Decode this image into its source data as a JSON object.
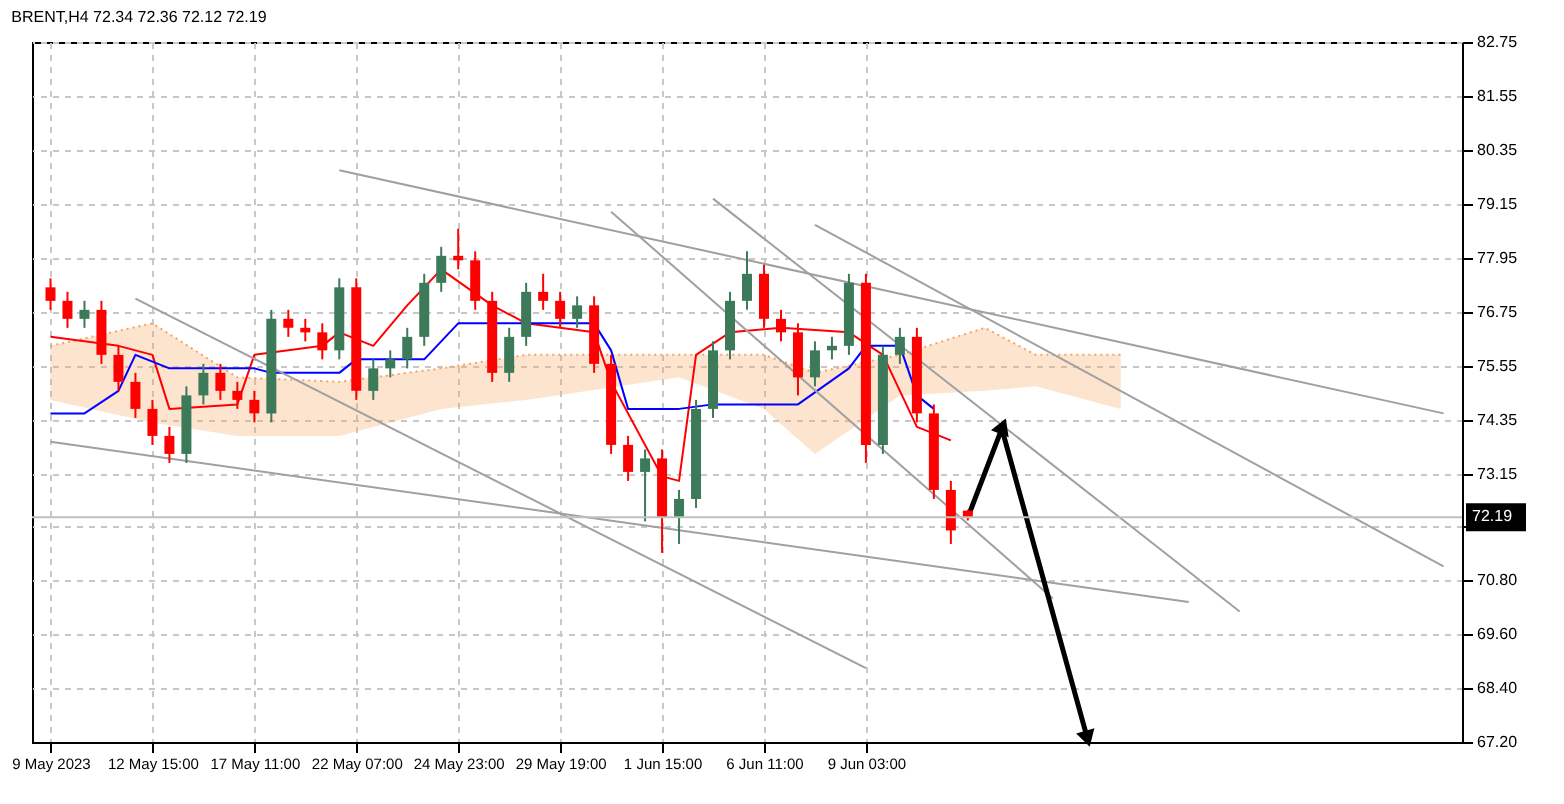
{
  "chart_data": {
    "type": "candlestick",
    "title": "BRENT,H4  72.34 72.36 72.12 72.19",
    "categories": [
      "9 May 2023",
      null,
      null,
      null,
      null,
      null,
      "12 May 15:00",
      null,
      null,
      null,
      null,
      null,
      "17 May 11:00",
      null,
      null,
      null,
      null,
      null,
      "22 May 07:00",
      null,
      null,
      null,
      null,
      null,
      "24 May 23:00",
      null,
      null,
      null,
      null,
      null,
      "29 May 19:00",
      null,
      null,
      null,
      null,
      null,
      "1 Jun 15:00",
      null,
      null,
      null,
      null,
      null,
      "6 Jun 11:00",
      null,
      null,
      null,
      null,
      null,
      "9 Jun 03:00",
      null,
      null,
      null,
      null,
      null,
      null,
      null,
      null,
      null,
      null,
      null,
      null,
      null,
      null,
      null,
      null,
      null,
      null,
      null,
      null,
      null,
      null,
      null,
      null,
      null,
      null,
      null,
      null,
      null,
      null,
      null,
      null,
      null,
      null
    ],
    "ylim": [
      67.2,
      82.75
    ],
    "yticks": [
      {
        "value": 67.2,
        "label": "67.20"
      },
      {
        "value": 68.4,
        "label": "68.40"
      },
      {
        "value": 69.6,
        "label": "69.60"
      },
      {
        "value": 70.8,
        "label": "70.80"
      },
      {
        "value": 72.0,
        "label": null
      },
      {
        "value": 73.15,
        "label": "73.15"
      },
      {
        "value": 74.35,
        "label": "74.35"
      },
      {
        "value": 75.55,
        "label": "75.55"
      },
      {
        "value": 76.75,
        "label": "76.75"
      },
      {
        "value": 77.95,
        "label": "77.95"
      },
      {
        "value": 79.15,
        "label": "79.15"
      },
      {
        "value": 80.35,
        "label": "80.35"
      },
      {
        "value": 81.55,
        "label": "81.55"
      },
      {
        "value": 82.75,
        "label": "82.75"
      }
    ],
    "grid": true,
    "ref_lines": [
      {
        "axis": "y",
        "value": 72.19,
        "label": "72.19",
        "color": "#c0c0c0"
      }
    ],
    "series": [
      {
        "type": "line",
        "color": "#f4a460",
        "line_style": "dotted",
        "values": [
          76.0,
          null,
          null,
          null,
          null,
          null,
          76.5,
          null,
          null,
          null,
          null,
          75.3,
          null,
          null,
          null,
          null,
          null,
          75.2,
          null,
          null,
          null,
          null,
          null,
          75.5,
          null,
          null,
          null,
          null,
          75.8,
          null,
          null,
          null,
          null,
          null,
          null,
          null,
          null,
          75.8,
          null,
          null,
          null,
          null,
          75.8,
          null,
          null,
          75.4,
          null,
          null,
          null,
          null,
          75.8,
          null,
          null,
          null,
          null,
          76.4,
          null,
          null,
          75.8,
          null,
          null,
          null,
          null,
          75.8,
          null,
          null,
          null,
          null,
          null,
          null,
          null,
          null,
          null,
          null,
          null,
          null,
          null,
          null,
          null,
          null,
          null,
          null,
          null
        ],
        "upper": [
          76.0,
          null,
          null,
          null,
          null,
          null,
          76.5,
          null,
          null,
          null,
          null,
          75.3,
          null,
          null,
          null,
          null,
          null,
          75.2,
          null,
          null,
          null,
          null,
          null,
          75.5,
          null,
          null,
          null,
          null,
          75.8,
          null,
          null,
          null,
          null,
          null,
          null,
          null,
          null,
          75.8,
          null,
          null,
          null,
          null,
          75.8,
          null,
          null,
          75.4,
          null,
          null,
          null,
          null,
          75.8,
          null,
          null,
          null,
          null,
          76.4,
          null,
          null,
          75.8,
          null,
          null,
          null,
          null,
          75.8,
          null,
          null,
          null,
          null,
          null,
          null,
          null,
          null,
          null,
          null,
          null,
          null,
          null,
          null,
          null,
          null,
          null,
          null,
          null
        ],
        "lower": [
          74.8,
          null,
          null,
          null,
          null,
          null,
          74.3,
          null,
          null,
          null,
          null,
          74.0,
          null,
          null,
          null,
          null,
          null,
          74.0,
          null,
          null,
          null,
          null,
          null,
          74.6,
          null,
          null,
          null,
          null,
          74.8,
          null,
          null,
          null,
          null,
          null,
          null,
          null,
          null,
          75.3,
          null,
          null,
          null,
          null,
          74.6,
          null,
          null,
          73.6,
          null,
          null,
          null,
          null,
          74.9,
          null,
          null,
          null,
          null,
          75.0,
          null,
          null,
          75.1,
          null,
          null,
          null,
          null,
          74.6,
          null,
          null,
          null,
          null,
          null,
          null,
          null,
          null,
          null,
          null,
          null,
          null,
          null,
          null,
          null,
          null,
          null,
          null,
          null
        ]
      },
      {
        "type": "line",
        "color": "#ff0000",
        "values": [
          76.2,
          null,
          null,
          null,
          76.0,
          null,
          75.8,
          74.6,
          null,
          null,
          null,
          74.7,
          75.8,
          null,
          null,
          null,
          76.0,
          76.3,
          null,
          76.0,
          null,
          76.9,
          null,
          77.7,
          null,
          null,
          76.9,
          null,
          76.5,
          null,
          null,
          null,
          76.3,
          75.2,
          null,
          null,
          73.1,
          73.0,
          75.8,
          null,
          76.3,
          null,
          null,
          76.4,
          null,
          null,
          null,
          76.3,
          null,
          75.8,
          null,
          74.2,
          null,
          73.9,
          null,
          null,
          null,
          null,
          null,
          null,
          null,
          null,
          null,
          null,
          null,
          null,
          null,
          null,
          null,
          null,
          null,
          null,
          null,
          null,
          null,
          null,
          null,
          null,
          null,
          null,
          null,
          null,
          null
        ]
      },
      {
        "type": "line",
        "color": "#0000ff",
        "values": [
          74.5,
          null,
          74.5,
          null,
          75.0,
          75.8,
          null,
          75.5,
          null,
          null,
          null,
          null,
          75.5,
          75.4,
          null,
          null,
          null,
          75.4,
          75.7,
          null,
          null,
          null,
          75.7,
          null,
          76.5,
          null,
          null,
          null,
          76.5,
          null,
          null,
          null,
          76.5,
          75.9,
          74.6,
          null,
          null,
          74.6,
          null,
          74.7,
          null,
          null,
          null,
          null,
          74.7,
          null,
          null,
          75.5,
          76.0,
          null,
          76.0,
          74.9,
          74.6,
          null,
          null,
          null,
          null,
          null,
          null,
          null,
          null,
          null,
          null,
          null,
          null,
          null,
          null,
          null,
          null,
          null,
          null,
          null,
          null,
          null,
          null,
          null,
          null,
          null,
          null,
          null,
          null,
          null,
          null
        ]
      },
      {
        "type": "line",
        "color": "#a0a0a0",
        "values": [
          null,
          null,
          null,
          null,
          null,
          null,
          null,
          null,
          null,
          null,
          null,
          null,
          null,
          null,
          null,
          null,
          null,
          79.9,
          null,
          null,
          null,
          null,
          null,
          null,
          null,
          null,
          null,
          null,
          null,
          null,
          null,
          null,
          null,
          null,
          null,
          null,
          null,
          null,
          null,
          null,
          null,
          null,
          null,
          null,
          null,
          null,
          null,
          null,
          null,
          null,
          null,
          null,
          null,
          null,
          null,
          null,
          null,
          null,
          null,
          null,
          null,
          null,
          null,
          null,
          null,
          null,
          null,
          null,
          null,
          null,
          null,
          null,
          null,
          null,
          null,
          null,
          null,
          null,
          null,
          null,
          null,
          null,
          74.5
        ]
      },
      {
        "type": "line",
        "color": "#a0a0a0",
        "values": [
          73.87,
          null,
          null,
          null,
          null,
          null,
          null,
          null,
          null,
          null,
          null,
          null,
          null,
          null,
          null,
          null,
          null,
          null,
          null,
          null,
          null,
          null,
          null,
          null,
          null,
          null,
          null,
          null,
          null,
          null,
          null,
          null,
          null,
          null,
          null,
          null,
          null,
          null,
          null,
          null,
          null,
          null,
          null,
          null,
          null,
          null,
          null,
          null,
          null,
          null,
          null,
          null,
          null,
          null,
          null,
          null,
          null,
          null,
          null,
          null,
          null,
          null,
          null,
          null,
          null,
          null,
          null,
          70.31,
          null,
          null,
          null,
          null,
          null,
          null,
          null,
          null,
          null,
          null,
          null,
          null,
          null,
          null,
          null
        ]
      },
      {
        "type": "line",
        "color": "#a0a0a0",
        "values": [
          null,
          null,
          null,
          null,
          null,
          77.05,
          null,
          null,
          null,
          null,
          null,
          null,
          null,
          null,
          null,
          null,
          null,
          null,
          null,
          null,
          null,
          null,
          null,
          null,
          null,
          null,
          null,
          null,
          null,
          null,
          null,
          null,
          null,
          null,
          null,
          null,
          null,
          null,
          null,
          null,
          null,
          null,
          null,
          null,
          null,
          null,
          null,
          null,
          68.84,
          null,
          null,
          null,
          null,
          null,
          null,
          null,
          null,
          null,
          null,
          null,
          null,
          null,
          null,
          null,
          null,
          null,
          null,
          null,
          null,
          null,
          null,
          null,
          null,
          null,
          null,
          null,
          null,
          null,
          null,
          null,
          null,
          null,
          null
        ]
      },
      {
        "type": "line",
        "color": "#a0a0a0",
        "values": [
          null,
          null,
          null,
          null,
          null,
          null,
          null,
          null,
          null,
          null,
          null,
          null,
          null,
          null,
          null,
          null,
          null,
          null,
          null,
          null,
          null,
          null,
          null,
          null,
          null,
          null,
          null,
          null,
          null,
          null,
          null,
          null,
          null,
          78.98,
          null,
          null,
          null,
          null,
          null,
          null,
          null,
          null,
          null,
          null,
          null,
          null,
          null,
          null,
          null,
          null,
          null,
          null,
          null,
          null,
          null,
          null,
          null,
          null,
          null,
          70.39,
          null,
          null,
          null,
          null,
          null,
          null,
          null,
          null,
          null,
          null,
          null,
          null,
          null,
          null,
          null,
          null,
          null,
          null,
          null,
          null,
          null,
          null,
          null
        ]
      },
      {
        "type": "line",
        "color": "#a0a0a0",
        "values": [
          null,
          null,
          null,
          null,
          null,
          null,
          null,
          null,
          null,
          null,
          null,
          null,
          null,
          null,
          null,
          null,
          null,
          null,
          null,
          null,
          null,
          null,
          null,
          null,
          null,
          null,
          null,
          null,
          null,
          null,
          null,
          null,
          null,
          null,
          null,
          null,
          null,
          null,
          null,
          79.27,
          null,
          null,
          null,
          null,
          null,
          null,
          null,
          null,
          null,
          null,
          null,
          null,
          null,
          null,
          null,
          null,
          null,
          null,
          null,
          null,
          null,
          null,
          null,
          null,
          null,
          null,
          null,
          null,
          null,
          null,
          70.1,
          null,
          null,
          null,
          null,
          null,
          null,
          null,
          null,
          null,
          null,
          null,
          null
        ]
      },
      {
        "type": "line",
        "color": "#a0a0a0",
        "values": [
          null,
          null,
          null,
          null,
          null,
          null,
          null,
          null,
          null,
          null,
          null,
          null,
          null,
          null,
          null,
          null,
          null,
          null,
          null,
          null,
          null,
          null,
          null,
          null,
          null,
          null,
          null,
          null,
          null,
          null,
          null,
          null,
          null,
          null,
          null,
          null,
          null,
          null,
          null,
          null,
          null,
          null,
          null,
          null,
          null,
          78.69,
          null,
          null,
          null,
          null,
          null,
          null,
          null,
          null,
          null,
          null,
          null,
          null,
          null,
          null,
          null,
          null,
          null,
          null,
          null,
          null,
          null,
          null,
          null,
          null,
          null,
          null,
          null,
          null,
          null,
          null,
          null,
          null,
          null,
          null,
          null,
          null,
          71.1
        ]
      },
      {
        "type": "line",
        "color": "#000000",
        "marker": "triangle",
        "values": [
          null,
          null,
          null,
          null,
          null,
          null,
          null,
          null,
          null,
          null,
          null,
          null,
          null,
          null,
          null,
          null,
          null,
          null,
          null,
          null,
          null,
          null,
          null,
          null,
          null,
          null,
          null,
          null,
          null,
          null,
          null,
          null,
          null,
          null,
          null,
          null,
          null,
          null,
          null,
          null,
          null,
          null,
          null,
          null,
          null,
          null,
          null,
          null,
          null,
          null,
          null,
          null,
          null,
          null,
          72.19,
          null,
          74.16,
          null,
          null,
          null,
          null,
          67.33,
          null,
          null,
          null,
          null,
          null,
          null,
          null,
          null,
          null,
          null,
          null,
          null,
          null,
          null,
          null,
          null,
          null,
          null,
          null,
          null,
          null
        ]
      },
      {
        "type": "candlestick",
        "ohlc": [
          [
            77.3,
            77.5,
            76.8,
            77.0
          ],
          [
            77.0,
            77.2,
            76.4,
            76.6
          ],
          [
            76.6,
            77.0,
            76.4,
            76.8
          ],
          [
            76.8,
            77.0,
            75.6,
            75.8
          ],
          [
            75.8,
            76.0,
            75.0,
            75.2
          ],
          [
            75.2,
            75.4,
            74.4,
            74.6
          ],
          [
            74.6,
            74.8,
            73.8,
            74.0
          ],
          [
            74.0,
            74.2,
            73.4,
            73.6
          ],
          [
            73.6,
            75.1,
            73.4,
            74.9
          ],
          [
            74.9,
            75.6,
            74.7,
            75.4
          ],
          [
            75.4,
            75.6,
            74.8,
            75.0
          ],
          [
            75.0,
            75.2,
            74.6,
            74.8
          ],
          [
            74.8,
            75.0,
            74.3,
            74.5
          ],
          [
            74.5,
            76.8,
            74.3,
            76.6
          ],
          [
            76.6,
            76.8,
            76.2,
            76.4
          ],
          [
            76.4,
            76.6,
            76.1,
            76.3
          ],
          [
            76.3,
            76.5,
            75.7,
            75.9
          ],
          [
            75.9,
            77.5,
            75.7,
            77.3
          ],
          [
            77.3,
            77.5,
            74.8,
            75.0
          ],
          [
            75.0,
            75.7,
            74.8,
            75.5
          ],
          [
            75.5,
            75.9,
            75.3,
            75.7
          ],
          [
            75.7,
            76.4,
            75.5,
            76.2
          ],
          [
            76.2,
            77.6,
            76.0,
            77.4
          ],
          [
            77.4,
            78.2,
            77.2,
            78.0
          ],
          [
            78.0,
            78.6,
            77.7,
            77.9
          ],
          [
            77.9,
            78.1,
            76.8,
            77.0
          ],
          [
            77.0,
            77.2,
            75.2,
            75.4
          ],
          [
            75.4,
            76.4,
            75.2,
            76.2
          ],
          [
            76.2,
            77.4,
            76.0,
            77.2
          ],
          [
            77.2,
            77.6,
            76.8,
            77.0
          ],
          [
            77.0,
            77.2,
            76.4,
            76.6
          ],
          [
            76.6,
            77.1,
            76.4,
            76.9
          ],
          [
            76.9,
            77.1,
            75.4,
            75.6
          ],
          [
            75.6,
            75.8,
            73.6,
            73.8
          ],
          [
            73.8,
            74.0,
            73.0,
            73.2
          ],
          [
            73.2,
            73.7,
            72.1,
            73.5
          ],
          [
            73.5,
            73.7,
            71.4,
            72.2
          ],
          [
            72.2,
            72.8,
            71.6,
            72.6
          ],
          [
            72.6,
            74.8,
            72.4,
            74.6
          ],
          [
            74.6,
            76.1,
            74.4,
            75.9
          ],
          [
            75.9,
            77.2,
            75.7,
            77.0
          ],
          [
            77.0,
            78.1,
            76.8,
            77.6
          ],
          [
            77.6,
            77.8,
            76.4,
            76.6
          ],
          [
            76.6,
            76.8,
            76.1,
            76.3
          ],
          [
            76.3,
            76.5,
            74.9,
            75.3
          ],
          [
            75.3,
            76.1,
            75.1,
            75.9
          ],
          [
            75.9,
            76.2,
            75.7,
            76.0
          ],
          [
            76.0,
            77.6,
            75.8,
            77.4
          ],
          [
            77.4,
            77.6,
            73.4,
            73.8
          ],
          [
            73.8,
            76.0,
            73.6,
            75.8
          ],
          [
            75.8,
            76.4,
            75.6,
            76.2
          ],
          [
            76.2,
            76.4,
            74.3,
            74.5
          ],
          [
            74.5,
            74.7,
            72.6,
            72.8
          ],
          [
            72.8,
            73.0,
            71.6,
            71.9
          ],
          [
            72.34,
            72.36,
            72.12,
            72.19
          ],
          null,
          null,
          null,
          null,
          null,
          null,
          null,
          null,
          null,
          null,
          null,
          null,
          null,
          null,
          null,
          null,
          null,
          null,
          null,
          null,
          null,
          null,
          null,
          null,
          null,
          null,
          null,
          null
        ],
        "colors": [
          "#ff0000",
          "#ff0000",
          "#3c7a5a",
          "#ff0000",
          "#ff0000",
          "#ff0000",
          "#ff0000",
          "#ff0000",
          "#3c7a5a",
          "#3c7a5a",
          "#ff0000",
          "#ff0000",
          "#ff0000",
          "#3c7a5a",
          "#ff0000",
          "#ff0000",
          "#ff0000",
          "#3c7a5a",
          "#ff0000",
          "#3c7a5a",
          "#3c7a5a",
          "#3c7a5a",
          "#3c7a5a",
          "#3c7a5a",
          "#ff0000",
          "#ff0000",
          "#ff0000",
          "#3c7a5a",
          "#3c7a5a",
          "#ff0000",
          "#ff0000",
          "#3c7a5a",
          "#ff0000",
          "#ff0000",
          "#ff0000",
          "#3c7a5a",
          "#ff0000",
          "#3c7a5a",
          "#3c7a5a",
          "#3c7a5a",
          "#3c7a5a",
          "#3c7a5a",
          "#ff0000",
          "#ff0000",
          "#ff0000",
          "#3c7a5a",
          "#3c7a5a",
          "#3c7a5a",
          "#ff0000",
          "#3c7a5a",
          "#3c7a5a",
          "#ff0000",
          "#ff0000",
          "#ff0000",
          "#ff0000",
          null,
          null,
          null,
          null,
          null,
          null,
          null,
          null,
          null,
          null,
          null,
          null,
          null,
          null,
          null,
          null,
          null,
          null,
          null,
          null,
          null,
          null,
          null,
          null,
          null,
          null,
          null,
          null
        ]
      }
    ]
  }
}
